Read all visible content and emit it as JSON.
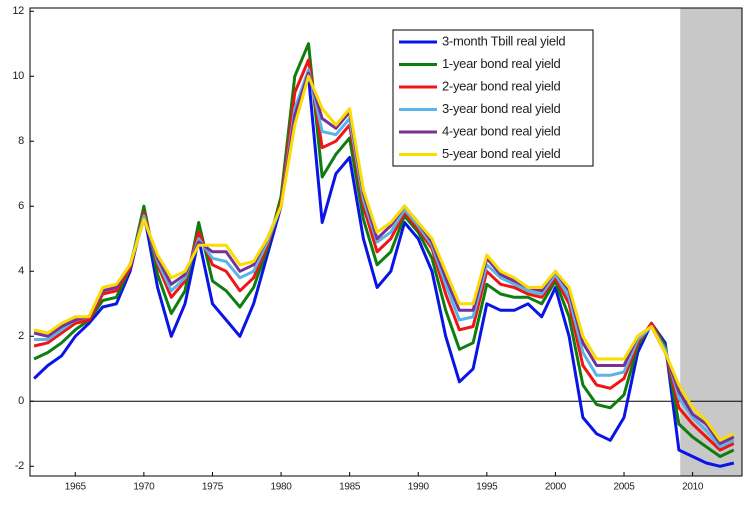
{
  "chart_data": {
    "type": "line",
    "x": [
      1962,
      1963,
      1964,
      1965,
      1966,
      1967,
      1968,
      1969,
      1970,
      1971,
      1972,
      1973,
      1974,
      1975,
      1976,
      1977,
      1978,
      1979,
      1980,
      1981,
      1982,
      1983,
      1984,
      1985,
      1986,
      1987,
      1988,
      1989,
      1990,
      1991,
      1992,
      1993,
      1994,
      1995,
      1996,
      1997,
      1998,
      1999,
      2000,
      2001,
      2002,
      2003,
      2004,
      2005,
      2006,
      2007,
      2008,
      2009,
      2010,
      2011,
      2012,
      2013
    ],
    "series": [
      {
        "name": "3-month Tbill real yield",
        "color": "#0a14e6",
        "values": [
          0.7,
          1.1,
          1.4,
          2.0,
          2.4,
          2.9,
          3.0,
          4.0,
          5.8,
          3.5,
          2.0,
          3.0,
          5.0,
          3.0,
          2.5,
          2.0,
          3.0,
          4.5,
          6.0,
          9.0,
          10.0,
          5.5,
          7.0,
          7.5,
          5.0,
          3.5,
          4.0,
          5.5,
          5.0,
          4.0,
          2.0,
          0.6,
          1.0,
          3.0,
          2.8,
          2.8,
          3.0,
          2.6,
          3.5,
          2.0,
          -0.5,
          -1.0,
          -1.2,
          -0.5,
          1.5,
          2.4,
          1.8,
          -1.5,
          -1.7,
          -1.9,
          -2.0,
          -1.9
        ]
      },
      {
        "name": "1-year bond real yield",
        "color": "#0f7d0f",
        "values": [
          1.3,
          1.5,
          1.8,
          2.2,
          2.5,
          3.1,
          3.2,
          4.1,
          6.0,
          3.9,
          2.7,
          3.4,
          5.5,
          3.7,
          3.4,
          2.9,
          3.5,
          4.7,
          6.3,
          10.0,
          11.0,
          6.9,
          7.6,
          8.1,
          5.6,
          4.2,
          4.6,
          5.7,
          5.2,
          4.4,
          2.8,
          1.6,
          1.8,
          3.6,
          3.3,
          3.2,
          3.2,
          3.0,
          3.7,
          2.6,
          0.5,
          -0.1,
          -0.2,
          0.2,
          1.7,
          2.4,
          1.7,
          -0.7,
          -1.1,
          -1.4,
          -1.7,
          -1.5
        ]
      },
      {
        "name": "2-year bond real yield",
        "color": "#f01414",
        "values": [
          1.7,
          1.8,
          2.1,
          2.4,
          2.5,
          3.3,
          3.4,
          4.1,
          5.8,
          4.2,
          3.2,
          3.7,
          5.2,
          4.2,
          4.0,
          3.4,
          3.8,
          4.8,
          6.1,
          9.5,
          10.5,
          7.8,
          8.0,
          8.5,
          6.0,
          4.6,
          5.0,
          5.8,
          5.3,
          4.7,
          3.3,
          2.2,
          2.3,
          4.0,
          3.6,
          3.5,
          3.3,
          3.2,
          3.8,
          3.0,
          1.1,
          0.5,
          0.4,
          0.7,
          1.8,
          2.4,
          1.6,
          -0.2,
          -0.7,
          -1.1,
          -1.5,
          -1.3
        ]
      },
      {
        "name": "3-year bond real yield",
        "color": "#5ab4e6",
        "values": [
          1.9,
          1.9,
          2.2,
          2.5,
          2.6,
          3.4,
          3.5,
          4.2,
          5.7,
          4.3,
          3.4,
          3.8,
          5.0,
          4.4,
          4.3,
          3.8,
          4.0,
          4.9,
          6.0,
          9.0,
          10.2,
          8.3,
          8.2,
          8.7,
          6.2,
          4.9,
          5.2,
          5.9,
          5.4,
          4.8,
          3.6,
          2.5,
          2.6,
          4.2,
          3.8,
          3.6,
          3.4,
          3.3,
          3.9,
          3.2,
          1.5,
          0.8,
          0.8,
          0.9,
          1.9,
          2.3,
          1.6,
          0.1,
          -0.5,
          -0.9,
          -1.4,
          -1.2
        ]
      },
      {
        "name": "4-year bond real yield",
        "color": "#783296",
        "values": [
          2.1,
          2.0,
          2.3,
          2.5,
          2.6,
          3.4,
          3.5,
          4.2,
          5.6,
          4.4,
          3.6,
          3.9,
          4.9,
          4.6,
          4.6,
          4.0,
          4.2,
          5.0,
          6.0,
          8.8,
          10.1,
          8.7,
          8.4,
          8.9,
          6.4,
          5.0,
          5.4,
          6.0,
          5.5,
          4.9,
          3.8,
          2.8,
          2.8,
          4.4,
          3.9,
          3.7,
          3.5,
          3.4,
          4.0,
          3.4,
          1.8,
          1.1,
          1.1,
          1.1,
          2.0,
          2.3,
          1.5,
          0.3,
          -0.4,
          -0.7,
          -1.3,
          -1.1
        ]
      },
      {
        "name": "5-year bond real yield",
        "color": "#fadc00",
        "values": [
          2.2,
          2.1,
          2.4,
          2.6,
          2.6,
          3.5,
          3.6,
          4.2,
          5.6,
          4.5,
          3.8,
          4.0,
          4.8,
          4.8,
          4.8,
          4.2,
          4.3,
          5.0,
          6.0,
          8.5,
          10.0,
          9.0,
          8.5,
          9.0,
          6.5,
          5.2,
          5.5,
          6.0,
          5.5,
          5.0,
          4.0,
          3.0,
          3.0,
          4.5,
          4.0,
          3.8,
          3.5,
          3.5,
          4.0,
          3.5,
          2.0,
          1.3,
          1.3,
          1.3,
          2.0,
          2.3,
          1.5,
          0.5,
          -0.2,
          -0.6,
          -1.2,
          -1.0
        ]
      }
    ],
    "xlim": [
      1961.7,
      2013.6
    ],
    "ylim": [
      -2.3,
      12.1
    ],
    "xticks": [
      1965,
      1970,
      1975,
      1980,
      1985,
      1990,
      1995,
      2000,
      2005,
      2010
    ],
    "yticks": [
      -2,
      0,
      2,
      4,
      6,
      8,
      10,
      12
    ],
    "hline": 0,
    "shade_from": 2009.1,
    "shade_color": "#c8c8c8"
  }
}
